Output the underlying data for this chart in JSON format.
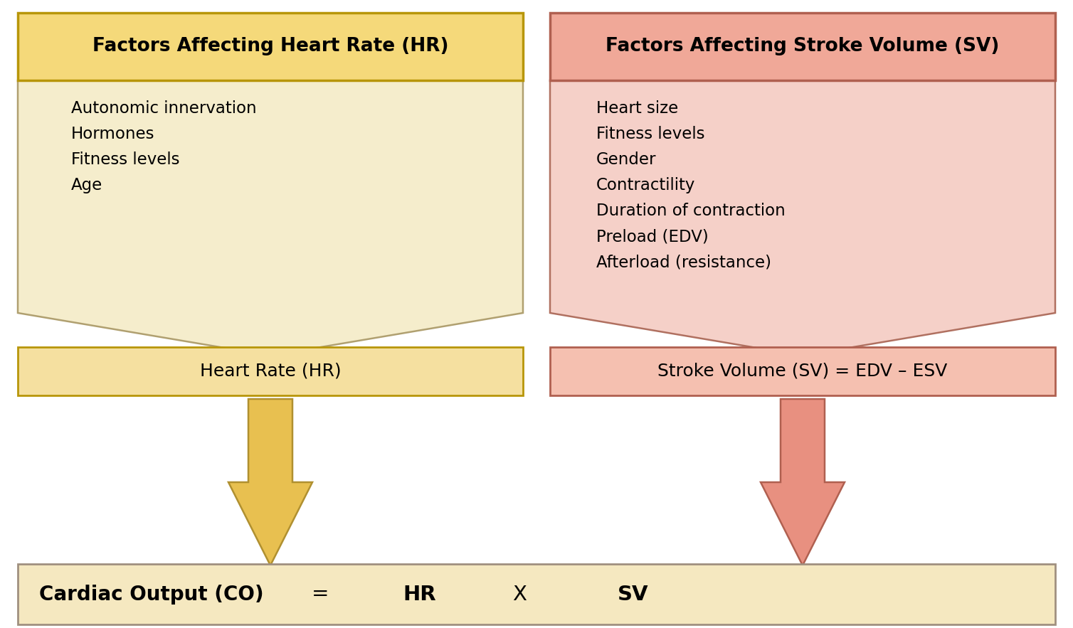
{
  "background_color": "#ffffff",
  "left_header_bg": "#f5d97a",
  "left_header_border": "#b8960a",
  "right_header_bg": "#f0a898",
  "right_header_border": "#b06050",
  "left_arrow_fill": "#f5edcc",
  "left_arrow_stroke": "#b0a070",
  "right_arrow_fill": "#f5d0c8",
  "right_arrow_stroke": "#b07060",
  "left_result_bg": "#f5e0a0",
  "left_result_border": "#b8960a",
  "right_result_bg": "#f5c0b0",
  "right_result_border": "#b06050",
  "left_small_arrow_fill": "#e8c050",
  "left_small_arrow_stroke": "#b09030",
  "right_small_arrow_fill": "#e89080",
  "right_small_arrow_stroke": "#b06050",
  "bottom_box_bg": "#f5e8c0",
  "bottom_box_border": "#a09080",
  "left_header_text": "Factors Affecting Heart Rate (HR)",
  "right_header_text": "Factors Affecting Stroke Volume (SV)",
  "left_factors": [
    "Autonomic innervation",
    "Hormones",
    "Fitness levels",
    "Age"
  ],
  "right_factors": [
    "Heart size",
    "Fitness levels",
    "Gender",
    "Contractility",
    "Duration of contraction",
    "Preload (EDV)",
    "Afterload (resistance)"
  ],
  "left_result": "Heart Rate (HR)",
  "right_result": "Stroke Volume (SV) = EDV – ESV",
  "figsize": [
    15.08,
    8.83
  ],
  "dpi": 100
}
